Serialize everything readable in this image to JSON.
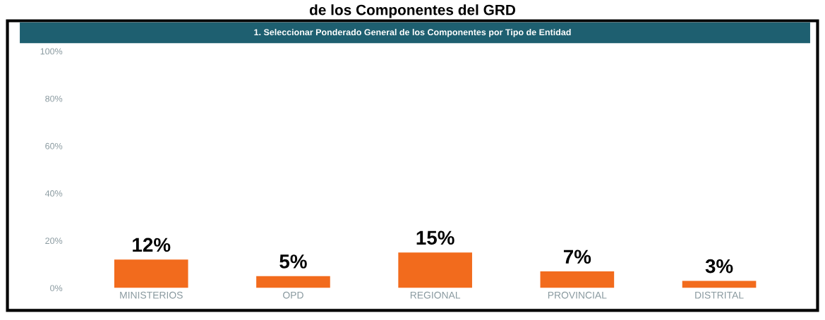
{
  "chart_data": {
    "type": "bar",
    "title": "de los Componentes del GRD",
    "subtitle": "1. Seleccionar Ponderado General de los Componentes por Tipo de Entidad",
    "categories": [
      "MINISTERIOS",
      "OPD",
      "REGIONAL",
      "PROVINCIAL",
      "DISTRITAL"
    ],
    "values": [
      12,
      5,
      15,
      7,
      3
    ],
    "color": "#f26b1d",
    "value_labels": [
      "12%",
      "5%",
      "15%",
      "7%",
      "3%"
    ],
    "ylim": [
      0,
      100
    ],
    "yticks": [
      {
        "value": 0,
        "label": "0%"
      },
      {
        "value": 20,
        "label": "20%"
      },
      {
        "value": 40,
        "label": "40%"
      },
      {
        "value": 60,
        "label": "60%"
      },
      {
        "value": 80,
        "label": "80%"
      },
      {
        "value": 100,
        "label": "100%"
      }
    ],
    "grid": false,
    "legend": false
  }
}
